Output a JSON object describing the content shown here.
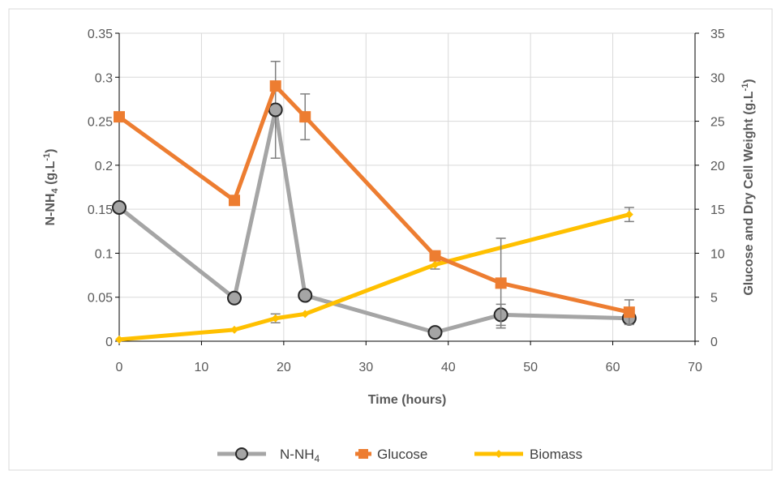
{
  "chart_data": {
    "type": "line",
    "title": "",
    "xlabel": "Time (hours)",
    "ylabel_left": {
      "main": "N-NH",
      "sub": "4",
      "suffix": " (g.L",
      "sup": "-1",
      "close": ")"
    },
    "ylabel_right": {
      "main": "Glucose and Dry Cell Weight (g.L",
      "sup": "-1",
      "close": ")"
    },
    "xlim": [
      0,
      70
    ],
    "ylim_left": [
      0,
      0.35
    ],
    "ylim_right": [
      0,
      35
    ],
    "x_ticks": [
      "0",
      "10",
      "20",
      "30",
      "40",
      "50",
      "60",
      "70"
    ],
    "y_left_ticks": [
      "0",
      "0.05",
      "0.1",
      "0.15",
      "0.2",
      "0.25",
      "0.3",
      "0.35"
    ],
    "y_right_ticks": [
      "0",
      "5",
      "10",
      "15",
      "20",
      "25",
      "30",
      "35"
    ],
    "grid": true,
    "legend_position": "bottom",
    "series": [
      {
        "name": "N-NH4",
        "legend_label": {
          "main": "N-NH",
          "sub": "4"
        },
        "axis": "left",
        "color": "#a5a5a5",
        "marker": "circle",
        "x": [
          0,
          14,
          19,
          22.6,
          38.4,
          46.4,
          62
        ],
        "y": [
          0.152,
          0.049,
          0.263,
          0.052,
          0.01,
          0.03,
          0.026
        ],
        "error": [
          0,
          0,
          0.055,
          0,
          0,
          0.012,
          0.002
        ]
      },
      {
        "name": "Glucose",
        "axis": "right",
        "color": "#ed7d31",
        "marker": "square",
        "x": [
          0,
          14,
          19,
          22.6,
          38.4,
          46.4,
          62
        ],
        "y": [
          25.5,
          16.0,
          29.0,
          25.5,
          9.7,
          6.6,
          3.3
        ],
        "error": [
          0,
          0,
          0,
          2.6,
          0,
          5.1,
          1.4
        ]
      },
      {
        "name": "Biomass",
        "axis": "right",
        "color": "#ffc000",
        "marker": "diamond",
        "x": [
          0,
          14,
          19,
          22.6,
          38.4,
          62
        ],
        "y": [
          0.2,
          1.3,
          2.6,
          3.1,
          8.7,
          14.4
        ],
        "error": [
          0,
          0,
          0.5,
          0,
          0.5,
          0.8
        ]
      }
    ]
  }
}
